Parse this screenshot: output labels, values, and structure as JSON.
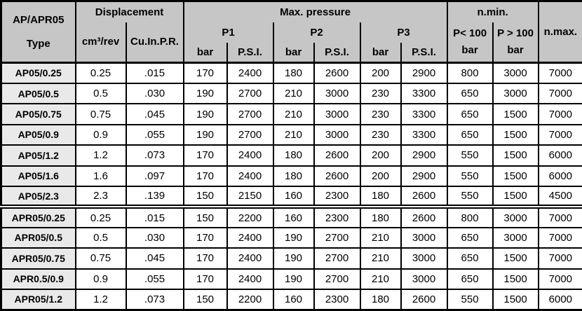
{
  "colors": {
    "header_bg": "#c6c6c6",
    "type_col_bg": "#e9e9e9",
    "cell_bg": "#ffffff",
    "border": "#000000",
    "text": "#000000"
  },
  "header": {
    "series_title": "AP/APR05",
    "type_label": "Type",
    "displacement": "Displacement",
    "disp_unit_metric": "cm³/rev",
    "disp_unit_imperial": "Cu.In.P.R.",
    "max_pressure": "Max. pressure",
    "p1": "P1",
    "p2": "P2",
    "p3": "P3",
    "bar": "bar",
    "psi": "P.S.I.",
    "n_min": "n.min.",
    "n_min_low_line1": "P< 100",
    "n_min_low_line2": "bar",
    "n_min_high_line1": "P > 100",
    "n_min_high_line2": "bar",
    "n_max": "n.max."
  },
  "rows": [
    {
      "type": "AP05/0.25",
      "section_start": false,
      "values": [
        "0.25",
        ".015",
        "170",
        "2400",
        "180",
        "2600",
        "200",
        "2900",
        "800",
        "3000",
        "7000"
      ]
    },
    {
      "type": "AP05/0.5",
      "section_start": false,
      "values": [
        "0.5",
        ".030",
        "190",
        "2700",
        "210",
        "3000",
        "230",
        "3300",
        "650",
        "3000",
        "7000"
      ]
    },
    {
      "type": "AP05/0.75",
      "section_start": false,
      "values": [
        "0.75",
        ".045",
        "190",
        "2700",
        "210",
        "3000",
        "230",
        "3300",
        "650",
        "1500",
        "7000"
      ]
    },
    {
      "type": "AP05/0.9",
      "section_start": false,
      "values": [
        "0.9",
        ".055",
        "190",
        "2700",
        "210",
        "3000",
        "230",
        "3300",
        "650",
        "1500",
        "7000"
      ]
    },
    {
      "type": "AP05/1.2",
      "section_start": false,
      "values": [
        "1.2",
        ".073",
        "170",
        "2400",
        "180",
        "2600",
        "200",
        "2900",
        "550",
        "1500",
        "6000"
      ]
    },
    {
      "type": "AP05/1.6",
      "section_start": false,
      "values": [
        "1.6",
        ".097",
        "170",
        "2400",
        "180",
        "2600",
        "200",
        "2900",
        "550",
        "1500",
        "6000"
      ]
    },
    {
      "type": "AP05/2.3",
      "section_start": false,
      "values": [
        "2.3",
        ".139",
        "150",
        "2150",
        "160",
        "2300",
        "180",
        "2600",
        "550",
        "1500",
        "4500"
      ]
    },
    {
      "type": "APR05/0.25",
      "section_start": true,
      "values": [
        "0.25",
        ".015",
        "150",
        "2200",
        "160",
        "2300",
        "180",
        "2600",
        "800",
        "3000",
        "7000"
      ]
    },
    {
      "type": "APR05/0.5",
      "section_start": false,
      "values": [
        "0.5",
        ".030",
        "170",
        "2400",
        "190",
        "2700",
        "210",
        "3000",
        "650",
        "3000",
        "7000"
      ]
    },
    {
      "type": "APR05/0.75",
      "section_start": false,
      "values": [
        "0.75",
        ".045",
        "170",
        "2400",
        "190",
        "2700",
        "210",
        "3000",
        "650",
        "1500",
        "7000"
      ]
    },
    {
      "type": "APR0.5/0.9",
      "section_start": false,
      "values": [
        "0.9",
        ".055",
        "170",
        "2400",
        "190",
        "2700",
        "210",
        "3000",
        "650",
        "1500",
        "7000"
      ]
    },
    {
      "type": "APR05/1.2",
      "section_start": false,
      "values": [
        "1.2",
        ".073",
        "150",
        "2200",
        "160",
        "2300",
        "180",
        "2600",
        "550",
        "1500",
        "6000"
      ]
    }
  ]
}
